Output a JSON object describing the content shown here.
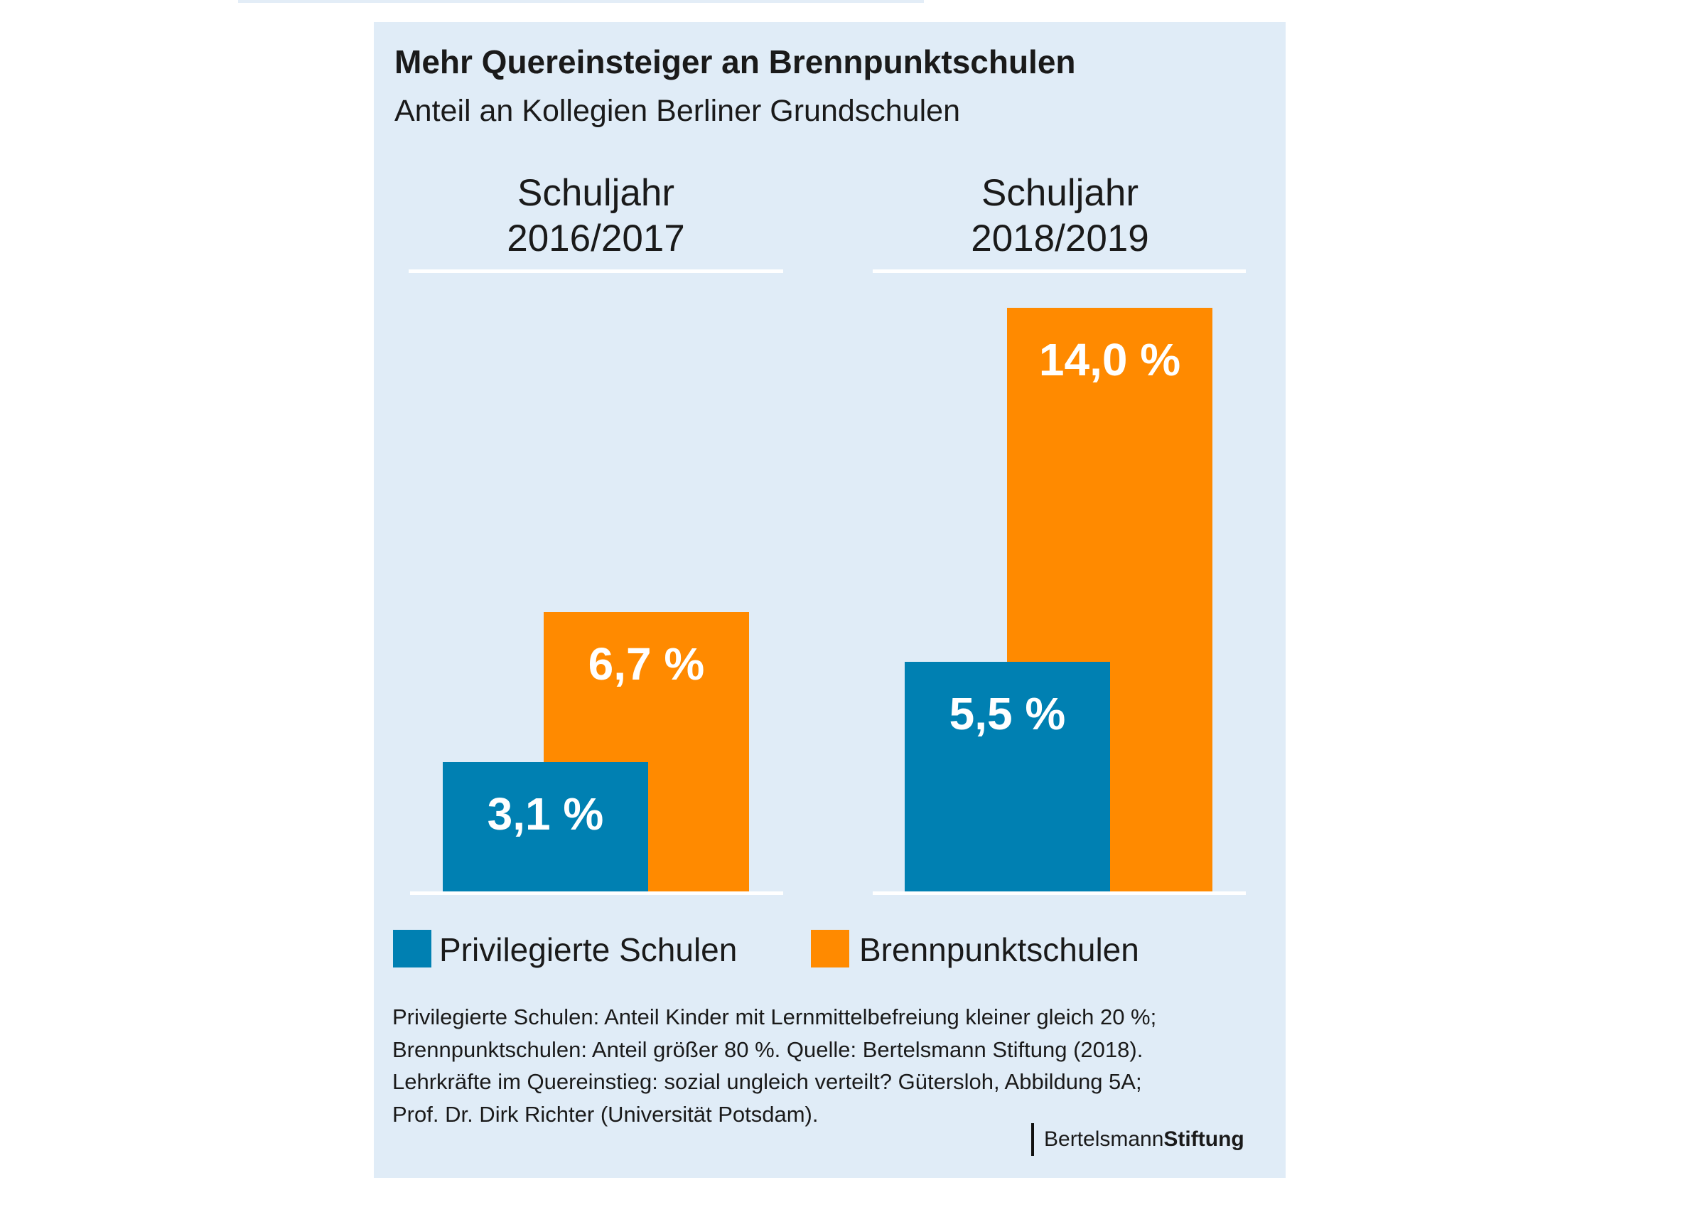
{
  "chart_data": {
    "type": "bar",
    "title": "Mehr Quereinsteiger an Brennpunktschulen",
    "subtitle": "Anteil an Kollegien Berliner Grundschulen",
    "categories": [
      {
        "line1": "Schuljahr",
        "line2": "2016/2017"
      },
      {
        "line1": "Schuljahr",
        "line2": "2018/2019"
      }
    ],
    "series": [
      {
        "name": "Privilegierte Schulen",
        "color": "#0080b2",
        "values": [
          3.1,
          5.5
        ],
        "labels": [
          "3,1 %",
          "5,5 %"
        ]
      },
      {
        "name": "Brennpunktschulen",
        "color": "#ff8a00",
        "values": [
          6.7,
          14.0
        ],
        "labels": [
          "6,7 %",
          "14,0 %"
        ]
      }
    ],
    "ylim": [
      0,
      14
    ],
    "xlabel": "",
    "ylabel": "",
    "grid": false,
    "legend": "bottom"
  },
  "footnote": [
    "Privilegierte Schulen: Anteil Kinder mit Lernmittelbefreiung kleiner gleich 20 %;",
    "Brennpunktschulen: Anteil größer 80 %. Quelle: Bertelsmann Stiftung (2018).",
    "Lehrkräfte im Quereinstieg: sozial ungleich verteilt? Gütersloh, Abbildung 5A;",
    "Prof. Dr. Dirk Richter (Universität Potsdam)."
  ],
  "logo": {
    "part1": "Bertelsmann",
    "part2": "Stiftung"
  }
}
